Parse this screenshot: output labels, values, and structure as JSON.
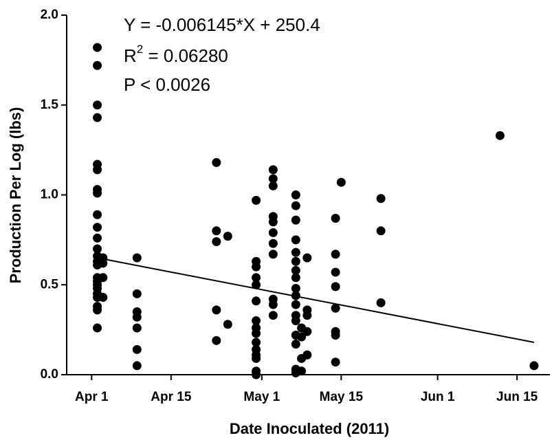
{
  "chart_data": {
    "type": "scatter",
    "x_label": "Date Inoculated (2011)",
    "y_label": "Production Per Log (lbs)",
    "annotations": [
      "Y = -0.006145*X + 250.4",
      {
        "base": "R",
        "sup": "2",
        "text": " = 0.06280"
      },
      "P < 0.0026"
    ],
    "color": "#000000",
    "xlim": [
      86.6,
      171.8
    ],
    "xticks": [
      {
        "value": 91,
        "label": "Apr 1"
      },
      {
        "value": 105,
        "label": "Apr 15"
      },
      {
        "value": 121,
        "label": "May 1"
      },
      {
        "value": 135,
        "label": "May 15"
      },
      {
        "value": 152,
        "label": "Jun 1"
      },
      {
        "value": 166,
        "label": "Jun 15"
      }
    ],
    "ylim": [
      0,
      2
    ],
    "yticks": [
      {
        "value": 0,
        "label": "0.0"
      },
      {
        "value": 0.5,
        "label": "0.5"
      },
      {
        "value": 1,
        "label": "1.0"
      },
      {
        "value": 1.5,
        "label": "1.5"
      },
      {
        "value": 2,
        "label": "2.0"
      }
    ],
    "x": [
      92,
      92,
      92,
      92,
      92,
      92,
      92,
      92,
      92,
      92,
      92,
      92,
      92,
      92,
      92,
      92,
      92,
      92,
      92,
      92,
      92,
      92,
      92,
      92,
      93,
      93,
      93,
      93,
      99,
      99,
      99,
      99,
      99,
      99,
      99,
      113,
      113,
      113,
      113,
      113,
      115,
      115,
      120,
      120,
      120,
      120,
      120,
      120,
      120,
      120,
      120,
      120,
      120,
      120,
      120,
      120,
      120,
      123,
      123,
      123,
      123,
      123,
      123,
      123,
      123,
      123,
      123,
      123,
      127,
      127,
      127,
      127,
      127,
      127,
      127,
      127,
      127,
      127,
      127,
      127,
      127,
      127,
      127,
      127,
      127,
      128,
      128,
      128,
      128,
      129,
      129,
      129,
      129,
      129,
      134,
      134,
      134,
      134,
      134,
      134,
      134,
      134,
      135,
      142,
      142,
      142,
      163,
      169
    ],
    "values": [
      1.82,
      1.72,
      1.5,
      1.43,
      1.17,
      1.14,
      1.03,
      1.01,
      0.89,
      0.82,
      0.76,
      0.7,
      0.66,
      0.63,
      0.61,
      0.54,
      0.52,
      0.5,
      0.48,
      0.45,
      0.43,
      0.38,
      0.36,
      0.26,
      0.65,
      0.62,
      0.54,
      0.43,
      0.65,
      0.45,
      0.35,
      0.32,
      0.26,
      0.14,
      0.05,
      1.18,
      0.8,
      0.74,
      0.36,
      0.19,
      0.77,
      0.28,
      0.97,
      0.63,
      0.6,
      0.54,
      0.5,
      0.41,
      0.3,
      0.26,
      0.23,
      0.18,
      0.14,
      0.11,
      0.09,
      0.02,
      0,
      1.14,
      1.09,
      1.05,
      0.88,
      0.85,
      0.79,
      0.73,
      0.67,
      0.42,
      0.39,
      0.33,
      1,
      0.94,
      0.86,
      0.75,
      0.68,
      0.63,
      0.58,
      0.54,
      0.48,
      0.44,
      0.39,
      0.33,
      0.3,
      0.22,
      0.17,
      0.03,
      0.01,
      0.26,
      0.21,
      0.09,
      0.02,
      0.65,
      0.36,
      0.33,
      0.24,
      0.11,
      0.87,
      0.67,
      0.57,
      0.49,
      0.37,
      0.24,
      0.22,
      0.07,
      1.07,
      0.98,
      0.8,
      0.4,
      1.33,
      0.05
    ],
    "fit_line": {
      "x": [
        92,
        169
      ],
      "values": [
        0.65,
        0.18
      ]
    }
  }
}
